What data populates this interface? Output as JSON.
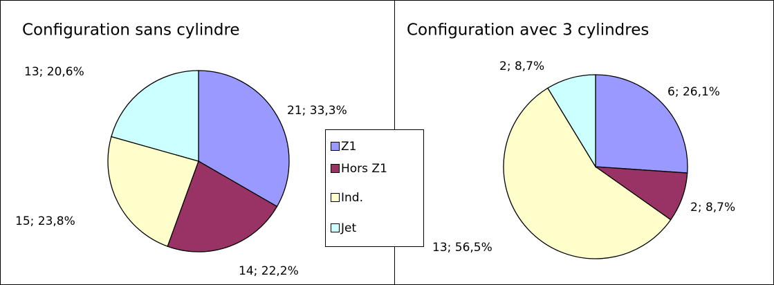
{
  "chart_data": [
    {
      "type": "pie",
      "title": "Configuration sans cylindre",
      "values": [
        21,
        14,
        15,
        13
      ],
      "value_labels": [
        "21; 33,3%",
        "14; 22,2%",
        "15; 23,8%",
        "13; 20,6%"
      ]
    },
    {
      "type": "pie",
      "title": "Configuration avec 3 cylindres",
      "values": [
        6,
        2,
        13,
        2
      ],
      "value_labels": [
        "6; 26,1%",
        "2; 8,7%",
        "13; 56,5%",
        "2; 8,7%"
      ]
    }
  ],
  "legend": {
    "items": [
      "Z1",
      "Hors Z1",
      "Ind.",
      "Jet"
    ],
    "colors": [
      "#9999ff",
      "#993366",
      "#ffffcc",
      "#ccffff"
    ]
  }
}
